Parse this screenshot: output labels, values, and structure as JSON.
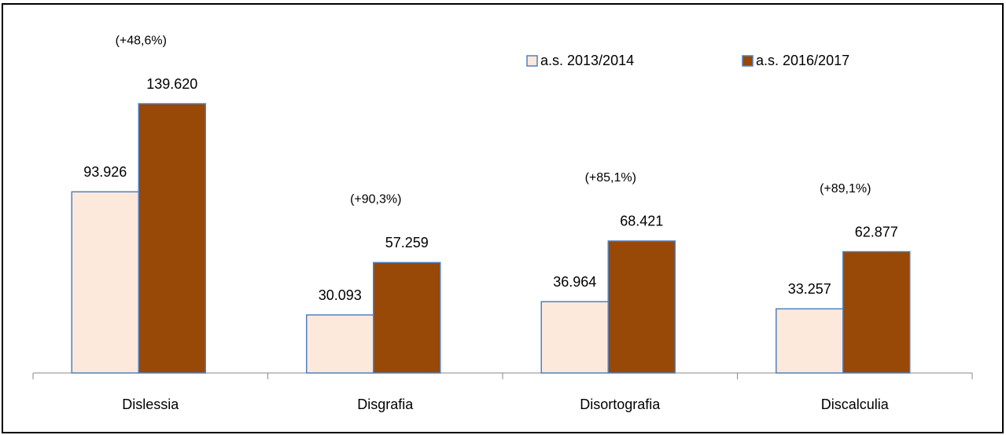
{
  "chart_data": {
    "type": "bar",
    "categories": [
      "Dislessia",
      "Disgrafia",
      "Disortografia",
      "Discalculia"
    ],
    "series": [
      {
        "name": "a.s. 2013/2014",
        "color": "#fce9dc",
        "values": [
          93926,
          30093,
          36964,
          33257
        ],
        "value_labels": [
          "93.926",
          "30.093",
          "36.964",
          "33.257"
        ]
      },
      {
        "name": "a.s. 2016/2017",
        "color": "#984807",
        "values": [
          139620,
          57259,
          68421,
          62877
        ],
        "value_labels": [
          "139.620",
          "57.259",
          "68.421",
          "62.877"
        ]
      }
    ],
    "annotations": [
      "(+48,6%)",
      "(+90,3%)",
      "(+85,1%)",
      "(+89,1%)"
    ],
    "ylim": [
      0,
      160000
    ],
    "legend": "top-right"
  }
}
